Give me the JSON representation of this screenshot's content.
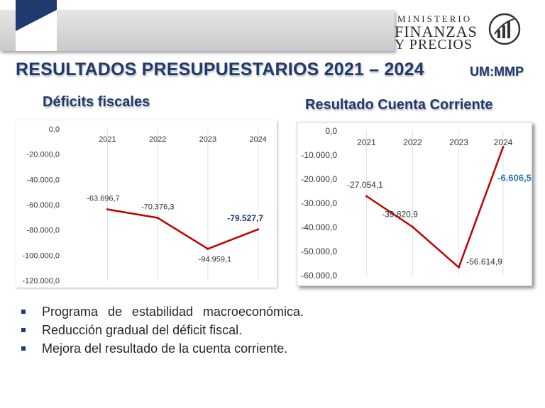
{
  "header": {
    "logo_line1": "MINISTERIO",
    "logo_line2": "FINANZAS",
    "logo_line3": "Y PRECIOS"
  },
  "title": "RESULTADOS PRESUPUESTARIOS 2021 – 2024",
  "unit": "UM:MMP",
  "left_title": "Déficits fiscales",
  "right_title": "Resultado Cuenta Corriente",
  "colors": {
    "title": "#1f3a6e",
    "line": "#c00000",
    "bullet": "#1f3a6e"
  },
  "chart_data": [
    {
      "type": "line",
      "title": "Déficits fiscales",
      "categories": [
        "2021",
        "2022",
        "2023",
        "2024"
      ],
      "values": [
        -63696.7,
        -70376.3,
        -94959.1,
        -79527.7
      ],
      "value_labels": [
        "-63.696,7",
        "-70.376,3",
        "-94.959,1",
        "-79.527,7"
      ],
      "y_ticks": [
        "0,0",
        "-20.000,0",
        "-40.000,0",
        "-60.000,0",
        "-80.000,0",
        "-100.000,0",
        "-120.000,0"
      ],
      "ylim": [
        -120000,
        0
      ],
      "xaxis_position": "top",
      "grid": "vertical"
    },
    {
      "type": "line",
      "title": "Resultado Cuenta Corriente",
      "categories": [
        "2021",
        "2022",
        "2023",
        "2024"
      ],
      "values": [
        -27054.1,
        -39820.9,
        -56614.9,
        -6606.5
      ],
      "value_labels": [
        "-27.054,1",
        "-39.820,9",
        "-56.614,9",
        "-6.606,5"
      ],
      "y_ticks": [
        "0,0",
        "-10.000,0",
        "-20.000,0",
        "-30.000,0",
        "-40.000,0",
        "-50.000,0",
        "-60.000,0"
      ],
      "ylim": [
        -60000,
        0
      ],
      "xaxis_position": "top",
      "grid": "vertical"
    }
  ],
  "bullets": [
    "Programa de estabilidad macroeconómica.",
    "Reducción gradual del déficit fiscal.",
    "Mejora del resultado de la cuenta corriente."
  ]
}
